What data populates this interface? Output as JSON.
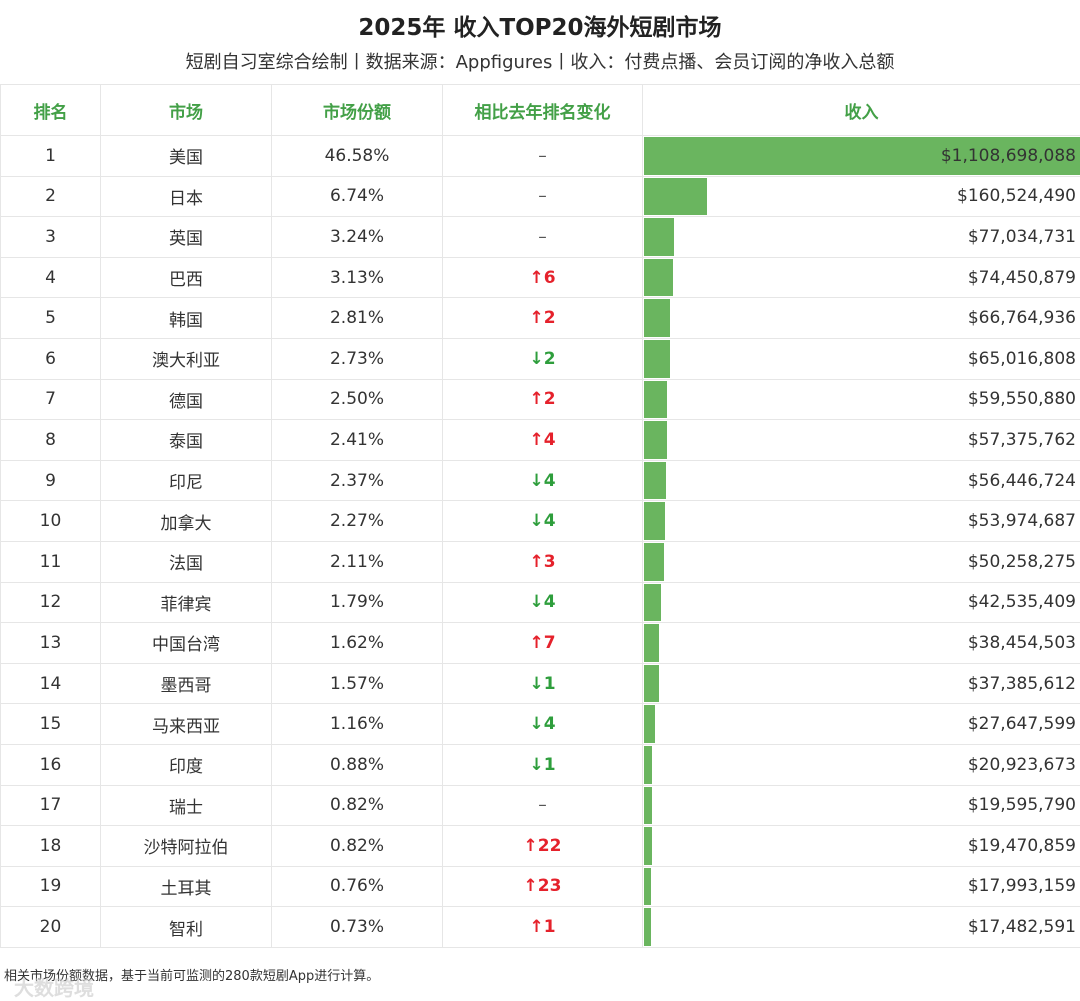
{
  "title": "2025年 收入TOP20海外短剧市场",
  "subtitle": "短剧自习室综合绘制丨数据来源：Appfigures丨收入：付费点播、会员订阅的净收入总额",
  "headers": [
    "排名",
    "市场",
    "市场份额",
    "相比去年排名变化",
    "收入"
  ],
  "footnote": "相关市场份额数据，基于当前可监测的280款短剧App进行计算。",
  "watermark": "大数跨境",
  "colors": {
    "bar": "#6ab55f",
    "header": "#43a047",
    "up": "#e5212b",
    "down": "#2e9e3c"
  },
  "chart_data": {
    "type": "table",
    "title": "2025年 收入TOP20海外短剧市场",
    "columns": [
      "排名",
      "市场",
      "市场份额",
      "相比去年排名变化",
      "收入"
    ],
    "rows": [
      {
        "rank": "1",
        "market": "美国",
        "share": "46.58%",
        "change_dir": "same",
        "change": "–",
        "revenue_text": "$1,108,698,088",
        "revenue": 1108698088
      },
      {
        "rank": "2",
        "market": "日本",
        "share": "6.74%",
        "change_dir": "same",
        "change": "–",
        "revenue_text": "$160,524,490",
        "revenue": 160524490
      },
      {
        "rank": "3",
        "market": "英国",
        "share": "3.24%",
        "change_dir": "same",
        "change": "–",
        "revenue_text": "$77,034,731",
        "revenue": 77034731
      },
      {
        "rank": "4",
        "market": "巴西",
        "share": "3.13%",
        "change_dir": "up",
        "change": "↑6",
        "revenue_text": "$74,450,879",
        "revenue": 74450879
      },
      {
        "rank": "5",
        "market": "韩国",
        "share": "2.81%",
        "change_dir": "up",
        "change": "↑2",
        "revenue_text": "$66,764,936",
        "revenue": 66764936
      },
      {
        "rank": "6",
        "market": "澳大利亚",
        "share": "2.73%",
        "change_dir": "down",
        "change": "↓2",
        "revenue_text": "$65,016,808",
        "revenue": 65016808
      },
      {
        "rank": "7",
        "market": "德国",
        "share": "2.50%",
        "change_dir": "up",
        "change": "↑2",
        "revenue_text": "$59,550,880",
        "revenue": 59550880
      },
      {
        "rank": "8",
        "market": "泰国",
        "share": "2.41%",
        "change_dir": "up",
        "change": "↑4",
        "revenue_text": "$57,375,762",
        "revenue": 57375762
      },
      {
        "rank": "9",
        "market": "印尼",
        "share": "2.37%",
        "change_dir": "down",
        "change": "↓4",
        "revenue_text": "$56,446,724",
        "revenue": 56446724
      },
      {
        "rank": "10",
        "market": "加拿大",
        "share": "2.27%",
        "change_dir": "down",
        "change": "↓4",
        "revenue_text": "$53,974,687",
        "revenue": 53974687
      },
      {
        "rank": "11",
        "market": "法国",
        "share": "2.11%",
        "change_dir": "up",
        "change": "↑3",
        "revenue_text": "$50,258,275",
        "revenue": 50258275
      },
      {
        "rank": "12",
        "market": "菲律宾",
        "share": "1.79%",
        "change_dir": "down",
        "change": "↓4",
        "revenue_text": "$42,535,409",
        "revenue": 42535409
      },
      {
        "rank": "13",
        "market": "中国台湾",
        "share": "1.62%",
        "change_dir": "up",
        "change": "↑7",
        "revenue_text": "$38,454,503",
        "revenue": 38454503
      },
      {
        "rank": "14",
        "market": "墨西哥",
        "share": "1.57%",
        "change_dir": "down",
        "change": "↓1",
        "revenue_text": "$37,385,612",
        "revenue": 37385612
      },
      {
        "rank": "15",
        "market": "马来西亚",
        "share": "1.16%",
        "change_dir": "down",
        "change": "↓4",
        "revenue_text": "$27,647,599",
        "revenue": 27647599
      },
      {
        "rank": "16",
        "market": "印度",
        "share": "0.88%",
        "change_dir": "down",
        "change": "↓1",
        "revenue_text": "$20,923,673",
        "revenue": 20923673
      },
      {
        "rank": "17",
        "market": "瑞士",
        "share": "0.82%",
        "change_dir": "same",
        "change": "–",
        "revenue_text": "$19,595,790",
        "revenue": 19595790
      },
      {
        "rank": "18",
        "market": "沙特阿拉伯",
        "share": "0.82%",
        "change_dir": "up",
        "change": "↑22",
        "revenue_text": "$19,470,859",
        "revenue": 19470859
      },
      {
        "rank": "19",
        "market": "土耳其",
        "share": "0.76%",
        "change_dir": "up",
        "change": "↑23",
        "revenue_text": "$17,993,159",
        "revenue": 17993159
      },
      {
        "rank": "20",
        "market": "智利",
        "share": "0.73%",
        "change_dir": "up",
        "change": "↑1",
        "revenue_text": "$17,482,591",
        "revenue": 17482591
      }
    ]
  }
}
